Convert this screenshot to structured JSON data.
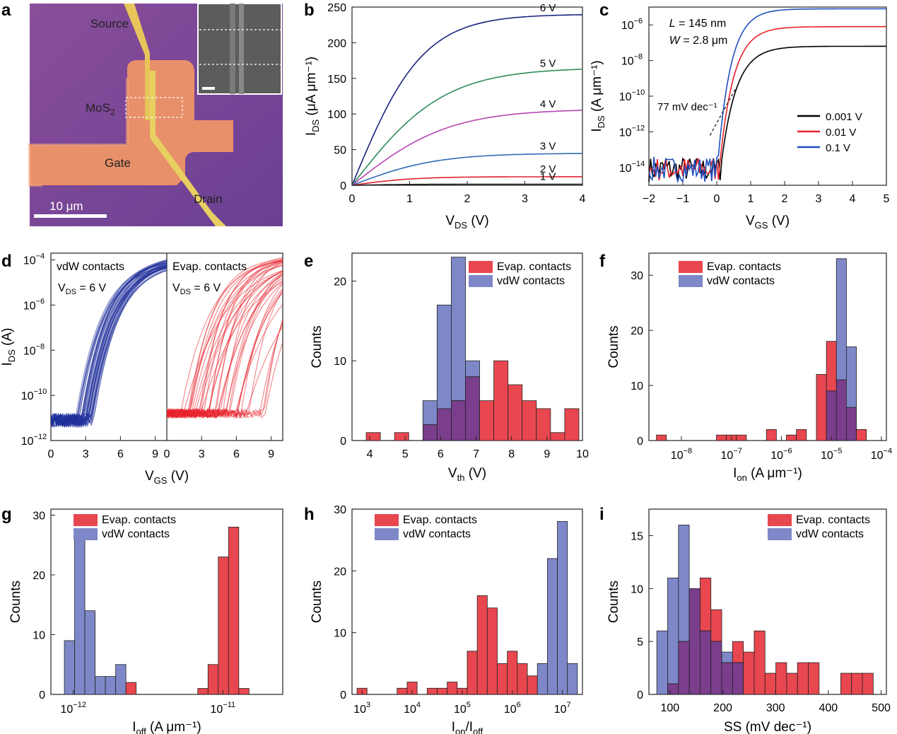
{
  "panel_letters": [
    "a",
    "b",
    "c",
    "d",
    "e",
    "f",
    "g",
    "h",
    "i"
  ],
  "panel_a": {
    "labels": {
      "source": "Source",
      "mos2": "MoS",
      "mos2_sub": "2",
      "gate": "Gate",
      "drain": "Drain"
    },
    "scalebar_label": "10 μm"
  },
  "colors": {
    "red": "#e8474f",
    "blue": "#7e88c8",
    "purple": "#7a3e8c",
    "navy": "#1f2f9a",
    "curve_red": "#e8232b"
  },
  "chart_data": [
    {
      "id": "b",
      "type": "line",
      "xlabel": {
        "main": "V",
        "sub": "DS",
        "tail": " (V)"
      },
      "ylabel": {
        "main": "I",
        "sub": "DS",
        "tail": " (μA μm⁻¹)"
      },
      "xlim": [
        0,
        4
      ],
      "ylim": [
        0,
        250
      ],
      "xticks": [
        0,
        1,
        2,
        3,
        4
      ],
      "yticks": [
        0,
        50,
        100,
        150,
        200,
        250
      ],
      "series": [
        {
          "name": "6 V",
          "color": "#1a237e",
          "sat": 240,
          "k": 1.3
        },
        {
          "name": "5 V",
          "color": "#2e8b57",
          "sat": 165,
          "k": 1.0
        },
        {
          "name": "4 V",
          "color": "#b545b0",
          "sat": 107,
          "k": 0.95
        },
        {
          "name": "3 V",
          "color": "#2f6db5",
          "sat": 45,
          "k": 0.95
        },
        {
          "name": "2 V",
          "color": "#e02030",
          "sat": 12,
          "k": 1.3
        },
        {
          "name": "1 V",
          "color": "#222222",
          "sat": 1.5,
          "k": 1.5
        }
      ]
    },
    {
      "id": "c",
      "type": "line",
      "yscale": "log",
      "xlabel": {
        "main": "V",
        "sub": "GS",
        "tail": " (V)"
      },
      "ylabel": {
        "main": "I",
        "sub": "DS",
        "tail": " (A μm⁻¹)"
      },
      "xlim": [
        -2,
        5
      ],
      "ylim": [
        -15,
        -5
      ],
      "xticks": [
        -2,
        -1,
        0,
        1,
        2,
        3,
        4,
        5
      ],
      "yticks": [
        -14,
        -12,
        -10,
        -8,
        -6
      ],
      "annotations": {
        "L": "L",
        "L_val": " = 145 nm",
        "W": "W",
        "W_val": " = 2.8 μm",
        "ss": "77 mV dec⁻¹"
      },
      "series": [
        {
          "name": "0.001 V",
          "color": "#000000",
          "ion": -7.2,
          "vth": 0.12
        },
        {
          "name": "0.01 V",
          "color": "#e8232b",
          "ion": -6.1,
          "vth": 0.08
        },
        {
          "name": "0.1 V",
          "color": "#1f4fbf",
          "ion": -5.1,
          "vth": 0.02
        }
      ]
    },
    {
      "id": "d",
      "type": "line",
      "yscale": "log",
      "xlabel": {
        "main": "V",
        "sub": "GS",
        "tail": " (V)"
      },
      "ylabel": {
        "main": "I",
        "sub": "DS",
        "tail": " (A)"
      },
      "xlim": [
        0,
        10
      ],
      "ylim": [
        -12,
        -3.7
      ],
      "xticks": [
        0,
        3,
        6,
        9
      ],
      "yticks": [
        -12,
        -10,
        -8,
        -6,
        -4
      ],
      "left_title": "vdW contacts",
      "right_title": "Evap. contacts",
      "vds_label": {
        "main": "V",
        "sub": "DS",
        "tail": " = 6 V"
      }
    },
    {
      "id": "e",
      "type": "bar",
      "xlabel": {
        "main": "V",
        "sub": "th",
        "tail": " (V)"
      },
      "ylabel": "Counts",
      "xlim": [
        3.5,
        10
      ],
      "ylim": [
        0,
        23.5
      ],
      "xticks": [
        4,
        5,
        6,
        7,
        8,
        9,
        10
      ],
      "yticks": [
        0,
        10,
        20
      ],
      "legend": [
        "Evap. contacts",
        "vdW contacts"
      ],
      "bin_width": 0.4,
      "bins_start": 3.9,
      "evap": [
        1,
        0,
        1,
        0,
        2,
        4,
        5,
        8,
        5,
        10,
        7,
        5,
        4,
        1,
        4
      ],
      "vdw": [
        0,
        0,
        0,
        0,
        5,
        17,
        23,
        10,
        0,
        0,
        0,
        0,
        0,
        0,
        0
      ]
    },
    {
      "id": "f",
      "type": "bar",
      "xscale": "log",
      "xlabel": {
        "main": "I",
        "sub": "on",
        "tail": " (A μm⁻¹)"
      },
      "ylabel": "Counts",
      "xlim": [
        -8.65,
        -3.9
      ],
      "ylim": [
        0,
        34
      ],
      "xticks": [
        -8,
        -7,
        -6,
        -5,
        -4
      ],
      "yticks": [
        0,
        10,
        20,
        30
      ],
      "legend": [
        "Evap. contacts",
        "vdW contacts"
      ],
      "bin_width": 0.2,
      "bins_start": -8.5,
      "evap": [
        1,
        0,
        0,
        0,
        0,
        0,
        1,
        1,
        1,
        0,
        0,
        2,
        0,
        1,
        2,
        0,
        12,
        18,
        11,
        6,
        2
      ],
      "vdw": [
        0,
        0,
        0,
        0,
        0,
        0,
        0,
        0,
        0,
        0,
        0,
        0,
        0,
        0,
        0,
        0,
        0,
        9,
        33,
        17,
        0
      ]
    },
    {
      "id": "g",
      "type": "bar",
      "xscale": "log",
      "xlabel": {
        "main": "I",
        "sub": "off",
        "tail": " (A μm⁻¹)"
      },
      "ylabel": "Counts",
      "xlim": [
        -12.15,
        -10.6
      ],
      "ylim": [
        0,
        31
      ],
      "xticks": [
        -12,
        -11
      ],
      "yticks": [
        0,
        10,
        20,
        30
      ],
      "legend": [
        "Evap. contacts",
        "vdW contacts"
      ],
      "bin_width": 0.0686,
      "bins_start": -12.06,
      "evap": [
        0,
        0,
        0,
        0,
        0,
        0,
        2,
        0,
        0,
        0,
        0,
        0,
        0,
        1,
        5,
        23,
        28,
        1
      ],
      "vdw": [
        9,
        26,
        14,
        3,
        3,
        5,
        0,
        0,
        0,
        0,
        0,
        0,
        0,
        0,
        0,
        0,
        0,
        0
      ]
    },
    {
      "id": "h",
      "type": "bar",
      "xscale": "log",
      "xlabel": {
        "main": "I",
        "sub": "on",
        "tail": "/I",
        "sub2": "off"
      },
      "ylabel": "Counts",
      "xlim": [
        2.8,
        7.4
      ],
      "ylim": [
        0,
        30
      ],
      "xticks": [
        3,
        4,
        5,
        6,
        7
      ],
      "yticks": [
        0,
        10,
        20,
        30
      ],
      "legend": [
        "Evap. contacts",
        "vdW contacts"
      ],
      "bin_width": 0.2,
      "bins_start": 2.9,
      "evap": [
        1,
        0,
        0,
        0,
        1,
        2,
        0,
        1,
        1,
        2,
        1,
        7,
        16,
        14,
        5,
        7,
        5,
        3,
        0,
        0,
        0,
        0
      ],
      "vdw": [
        0,
        0,
        0,
        0,
        0,
        0,
        0,
        0,
        0,
        0,
        0,
        0,
        0,
        0,
        0,
        0,
        0,
        0,
        5,
        22,
        28,
        5
      ]
    },
    {
      "id": "i",
      "type": "bar",
      "xlabel": {
        "main": "SS (mV dec⁻¹)",
        "sub": "",
        "tail": ""
      },
      "ylabel": "Counts",
      "xlim": [
        60,
        510
      ],
      "ylim": [
        0,
        17.5
      ],
      "xticks": [
        100,
        200,
        300,
        400,
        500
      ],
      "yticks": [
        0,
        5,
        10,
        15
      ],
      "legend": [
        "Evap. contacts",
        "vdW contacts"
      ],
      "bin_width": 20.5,
      "bins_start": 75,
      "evap": [
        0,
        1,
        5,
        10,
        11,
        8,
        3,
        5,
        4,
        6,
        2,
        3,
        2,
        3,
        3,
        0,
        0,
        2,
        2,
        2
      ],
      "vdw": [
        6,
        11,
        16,
        10,
        6,
        5,
        4,
        3,
        0,
        0,
        0,
        0,
        0,
        0,
        0,
        0,
        0,
        0,
        0,
        0
      ]
    }
  ]
}
